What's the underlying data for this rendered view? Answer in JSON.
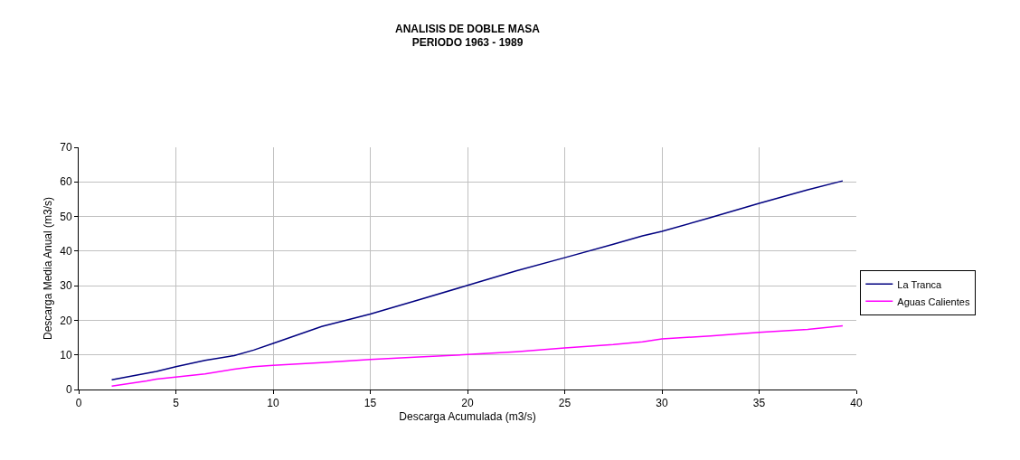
{
  "chart_data": {
    "type": "line",
    "title": "ANALISIS DE DOBLE MASA\nPERIODO 1963 - 1989",
    "xlabel": "Descarga Acumulada (m3/s)",
    "ylabel": "Descarga Media Anual (m3/s)",
    "xlim": [
      0,
      40
    ],
    "xticks": [
      0,
      5,
      10,
      15,
      20,
      25,
      30,
      35,
      40
    ],
    "ylim": [
      0,
      70
    ],
    "yticks": [
      0,
      10,
      20,
      30,
      40,
      50,
      60,
      70
    ],
    "grid": true,
    "legend": "right",
    "marker": "none",
    "line_style": "solid",
    "series": [
      {
        "name": "La Tranca",
        "color": "#000080",
        "x": [
          1.7,
          3.5,
          4,
          5,
          6.5,
          8,
          9,
          10,
          12.5,
          15,
          17.5,
          20,
          22.5,
          25,
          27.5,
          29,
          30,
          32.5,
          35,
          37.5,
          39.3
        ],
        "values": [
          2.8,
          4.7,
          5.2,
          6.6,
          8.4,
          9.8,
          11.4,
          13.3,
          18.2,
          21.8,
          25.9,
          30.1,
          34.3,
          38.1,
          42,
          44.4,
          45.7,
          49.7,
          53.8,
          57.7,
          60.3
        ]
      },
      {
        "name": "Aguas Calientes",
        "color": "#ff00ff",
        "x": [
          1.7,
          3.5,
          4,
          6.5,
          8,
          9,
          10,
          12.5,
          15,
          17.5,
          20,
          22.5,
          25,
          27.5,
          29,
          30,
          32.5,
          35,
          37.5,
          39.3
        ],
        "values": [
          1.0,
          2.5,
          3.0,
          4.5,
          5.9,
          6.6,
          7.0,
          7.8,
          8.7,
          9.4,
          10.1,
          10.9,
          12.0,
          13.0,
          13.8,
          14.6,
          15.5,
          16.5,
          17.4,
          18.4
        ]
      }
    ]
  }
}
